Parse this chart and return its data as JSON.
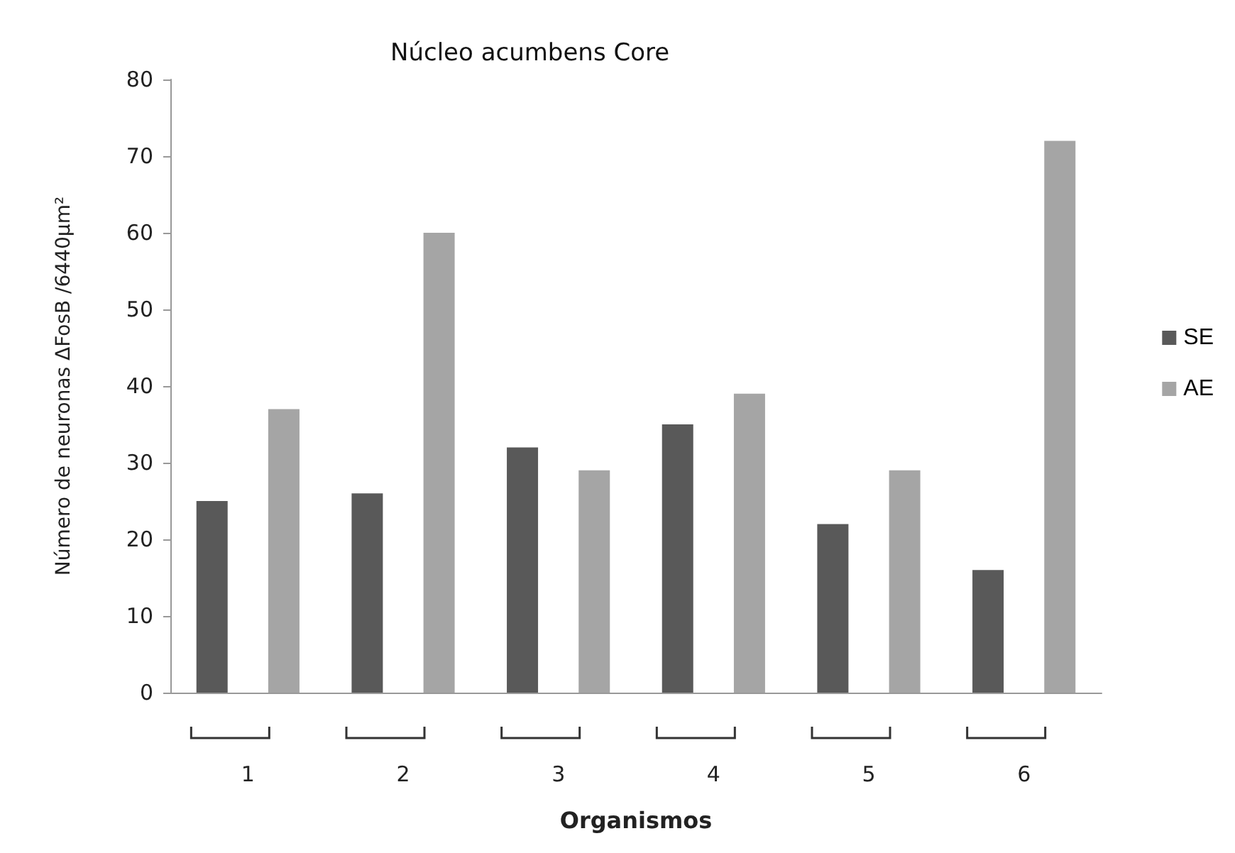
{
  "chart_data": {
    "type": "bar",
    "title": "Núcleo acumbens Core",
    "xlabel": "Organismos",
    "ylabel": "Número de neuronas ΔFosB /6440µm²",
    "categories": [
      "1",
      "2",
      "3",
      "4",
      "5",
      "6"
    ],
    "series": [
      {
        "name": "SE",
        "color": "#595959",
        "values": [
          25,
          26,
          32,
          35,
          22,
          16
        ]
      },
      {
        "name": "AE",
        "color": "#a5a5a5",
        "values": [
          37,
          60,
          29,
          39,
          29,
          72
        ]
      }
    ],
    "ylim": [
      0,
      80
    ],
    "yticks": [
      0,
      10,
      20,
      30,
      40,
      50,
      60,
      70,
      80
    ],
    "grid": false,
    "legend": "right"
  }
}
